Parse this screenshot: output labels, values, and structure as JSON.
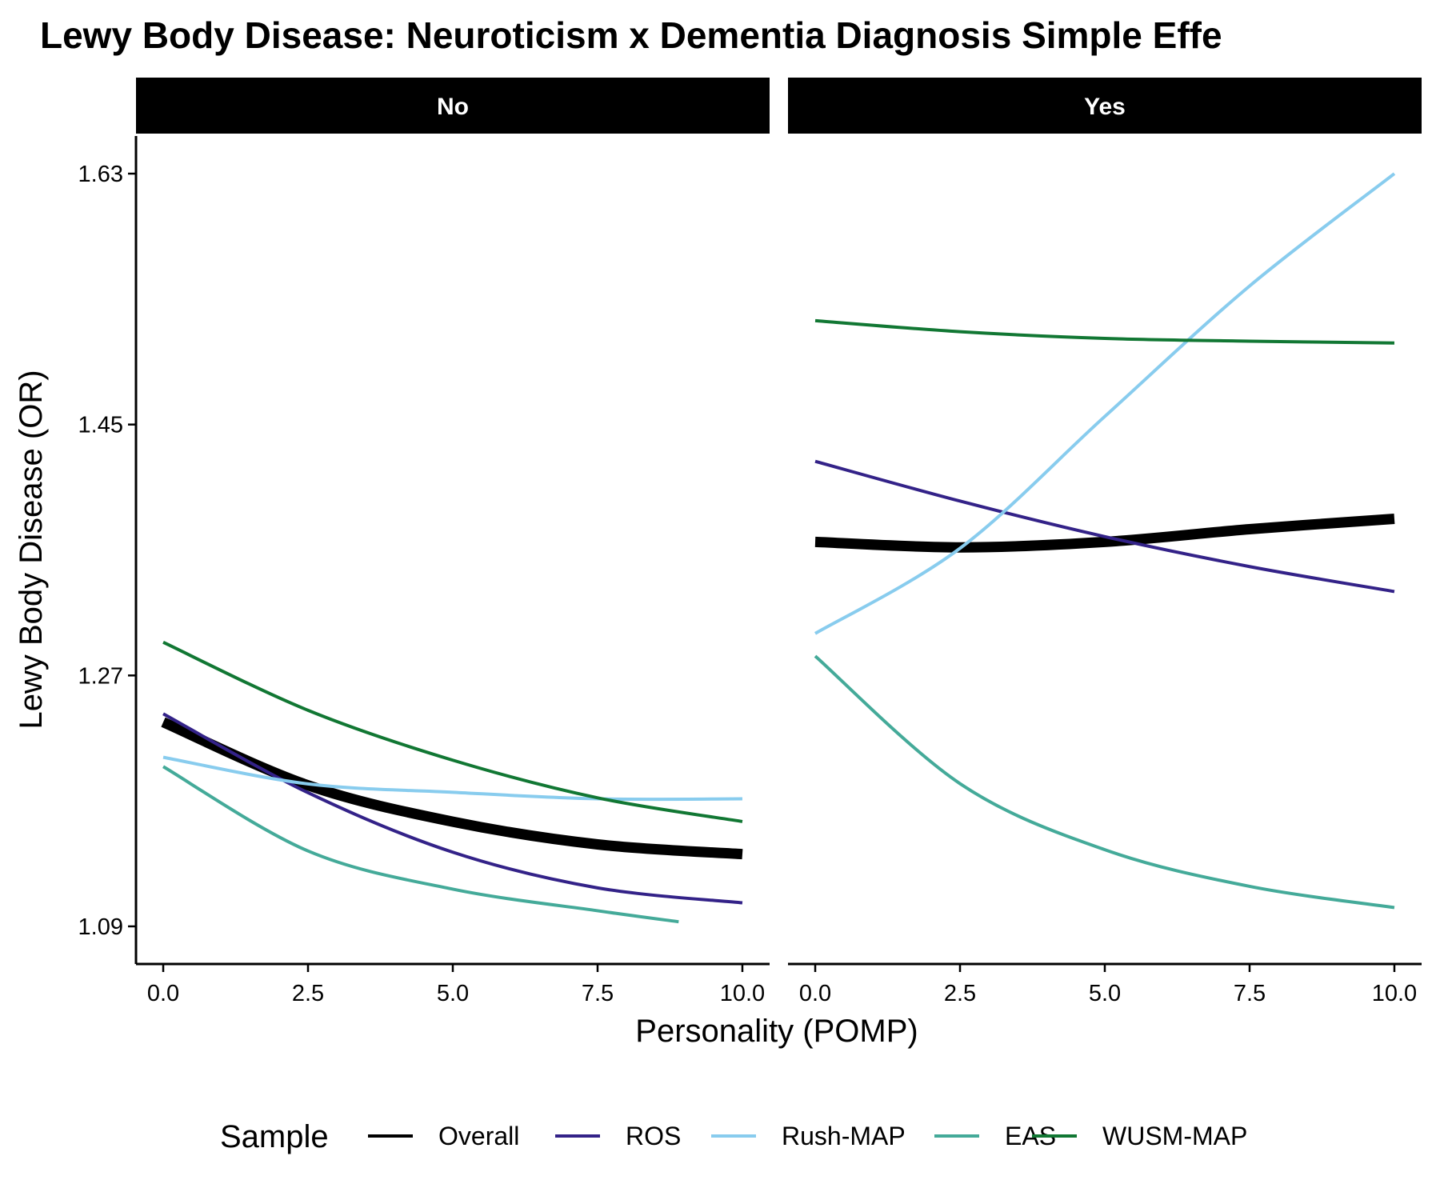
{
  "chart_data": {
    "type": "line",
    "title": "Lewy Body Disease: Neuroticism x Dementia Diagnosis Simple Effe",
    "xlabel": "Personality (POMP)",
    "ylabel": "Lewy Body Disease (OR)",
    "x_ticks": [
      "0.0",
      "2.5",
      "5.0",
      "7.5",
      "10.0"
    ],
    "x_tick_values": [
      0,
      2.5,
      5,
      7.5,
      10
    ],
    "y_ticks": [
      "1.09",
      "1.27",
      "1.45",
      "1.63"
    ],
    "y_tick_values": [
      1.09,
      1.27,
      1.45,
      1.63
    ],
    "xlim": [
      -0.47,
      10.47
    ],
    "ylim": [
      1.063,
      1.657
    ],
    "grid": false,
    "legend": {
      "title": "Sample",
      "position": "bottom",
      "entries": [
        "Overall",
        "ROS",
        "Rush-MAP",
        "EAS",
        "WUSM-MAP"
      ]
    },
    "series_styles": [
      {
        "name": "Overall",
        "color": "#000000",
        "width": 5
      },
      {
        "name": "ROS",
        "color": "#332288",
        "width": 2.5
      },
      {
        "name": "Rush-MAP",
        "color": "#88CCEE",
        "width": 2.5
      },
      {
        "name": "EAS",
        "color": "#44AA99",
        "width": 2.5
      },
      {
        "name": "WUSM-MAP",
        "color": "#117733",
        "width": 2.5
      }
    ],
    "x": [
      0,
      2.5,
      5,
      7.5,
      10
    ],
    "panels": [
      {
        "label": "No",
        "series": [
          {
            "name": "Overall",
            "values": [
              1.2365,
              1.1912,
              1.1651,
              1.1488,
              1.1418
            ]
          },
          {
            "name": "ROS",
            "values": [
              1.2425,
              1.1859,
              1.1432,
              1.1176,
              1.1069
            ]
          },
          {
            "name": "Rush-MAP",
            "values": [
              1.2113,
              1.1922,
              1.1862,
              1.1815,
              1.1815
            ]
          },
          {
            "name": "EAS",
            "values": [
              1.2046,
              1.1441,
              1.1167,
              1.1012,
              1.0933
            ]
          },
          {
            "name": "WUSM-MAP",
            "values": [
              1.2938,
              1.245,
              1.2092,
              1.1822,
              1.1652
            ]
          }
        ],
        "x_overrides": {
          "EAS": [
            0,
            2.5,
            5,
            7.5,
            8.9
          ]
        }
      },
      {
        "label": "Yes",
        "series": [
          {
            "name": "Overall",
            "values": [
              1.3658,
              1.3619,
              1.3658,
              1.3749,
              1.3824
            ]
          },
          {
            "name": "ROS",
            "values": [
              1.4236,
              1.3951,
              1.3696,
              1.3481,
              1.3302
            ]
          },
          {
            "name": "Rush-MAP",
            "values": [
              1.3001,
              1.3612,
              1.4558,
              1.5494,
              1.63
            ]
          },
          {
            "name": "EAS",
            "values": [
              1.2839,
              1.1924,
              1.145,
              1.1187,
              1.1035
            ]
          },
          {
            "name": "WUSM-MAP",
            "values": [
              1.5245,
              1.5166,
              1.5118,
              1.5098,
              1.5085
            ]
          }
        ]
      }
    ]
  }
}
